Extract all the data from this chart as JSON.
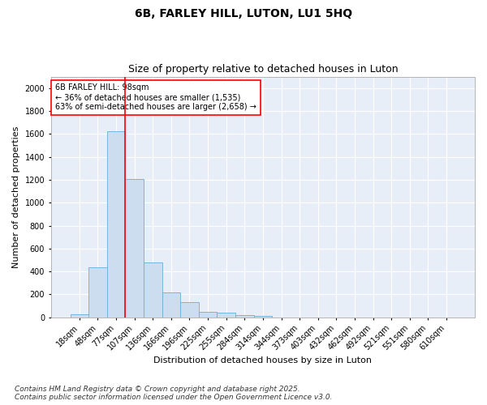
{
  "title1": "6B, FARLEY HILL, LUTON, LU1 5HQ",
  "title2": "Size of property relative to detached houses in Luton",
  "xlabel": "Distribution of detached houses by size in Luton",
  "ylabel": "Number of detached properties",
  "categories": [
    "18sqm",
    "48sqm",
    "77sqm",
    "107sqm",
    "136sqm",
    "166sqm",
    "196sqm",
    "225sqm",
    "255sqm",
    "284sqm",
    "314sqm",
    "344sqm",
    "373sqm",
    "403sqm",
    "432sqm",
    "462sqm",
    "492sqm",
    "521sqm",
    "551sqm",
    "580sqm",
    "610sqm"
  ],
  "values": [
    30,
    440,
    1620,
    1210,
    480,
    220,
    130,
    50,
    40,
    18,
    12,
    0,
    0,
    0,
    0,
    0,
    0,
    0,
    0,
    0,
    0
  ],
  "bar_color": "#ccddf0",
  "bar_edgecolor": "#6baed6",
  "vline_color": "red",
  "vline_position": 2.5,
  "annotation_text": "6B FARLEY HILL: 98sqm\n← 36% of detached houses are smaller (1,535)\n63% of semi-detached houses are larger (2,658) →",
  "annotation_box_facecolor": "white",
  "annotation_box_edgecolor": "red",
  "ylim": [
    0,
    2100
  ],
  "yticks": [
    0,
    200,
    400,
    600,
    800,
    1000,
    1200,
    1400,
    1600,
    1800,
    2000
  ],
  "footer": "Contains HM Land Registry data © Crown copyright and database right 2025.\nContains public sector information licensed under the Open Government Licence v3.0.",
  "plot_bg_color": "#e8eef7",
  "fig_bg_color": "#ffffff",
  "grid_color": "#ffffff",
  "title1_fontsize": 10,
  "title2_fontsize": 9,
  "axis_label_fontsize": 8,
  "tick_fontsize": 7,
  "annotation_fontsize": 7,
  "footer_fontsize": 6.5
}
